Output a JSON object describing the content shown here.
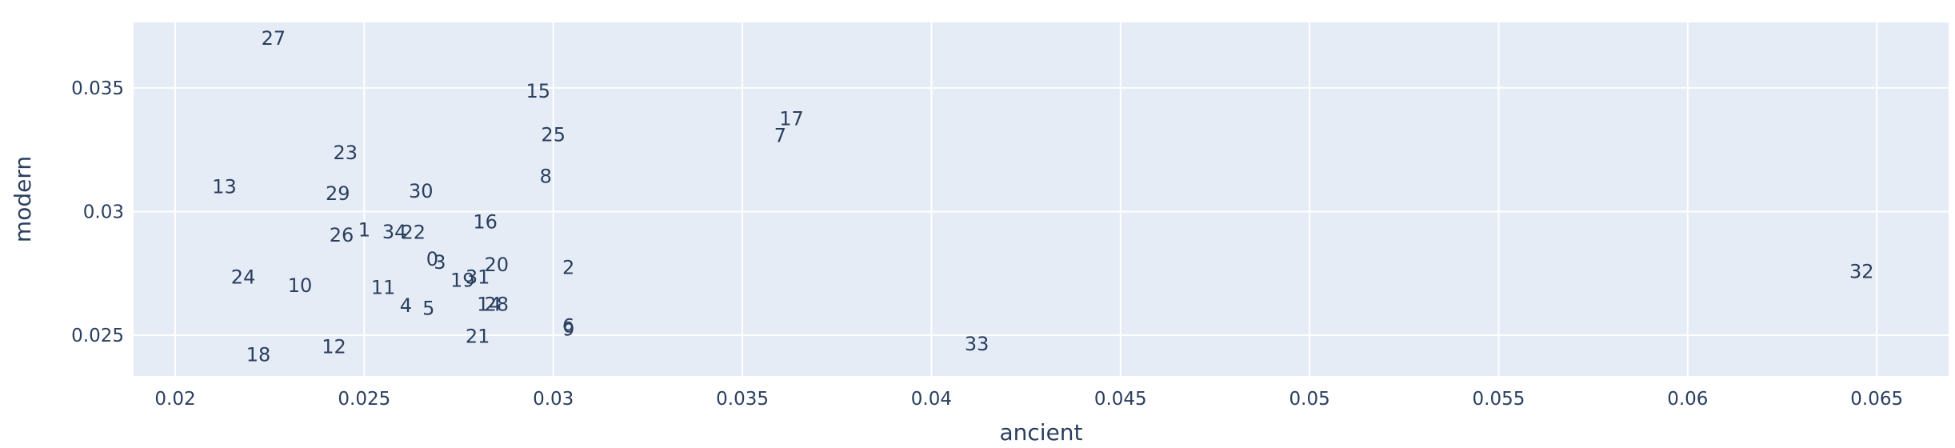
{
  "chart_data": {
    "type": "scatter",
    "mode": "text",
    "xlabel": "ancient",
    "ylabel": "modern",
    "xlim": [
      0.0189,
      0.0669
    ],
    "ylim": [
      0.02335,
      0.03765
    ],
    "x_ticks": [
      "0.02",
      "0.025",
      "0.03",
      "0.035",
      "0.04",
      "0.045",
      "0.05",
      "0.055",
      "0.06",
      "0.065"
    ],
    "y_ticks": [
      "0.025",
      "0.03",
      "0.035"
    ],
    "x_tick_values": [
      0.02,
      0.025,
      0.03,
      0.035,
      0.04,
      0.045,
      0.05,
      0.055,
      0.06,
      0.065
    ],
    "y_tick_values": [
      0.025,
      0.03,
      0.035
    ],
    "grid": true,
    "plot_bgcolor": "#E5ECF6",
    "text_color": "#2A3F5F",
    "points": [
      {
        "label": "0",
        "x": 0.0268,
        "y": 0.02808
      },
      {
        "label": "1",
        "x": 0.025,
        "y": 0.02925
      },
      {
        "label": "2",
        "x": 0.0304,
        "y": 0.02773
      },
      {
        "label": "3",
        "x": 0.027,
        "y": 0.02795
      },
      {
        "label": "4",
        "x": 0.0261,
        "y": 0.0262
      },
      {
        "label": "5",
        "x": 0.0267,
        "y": 0.02608
      },
      {
        "label": "6",
        "x": 0.0304,
        "y": 0.02537
      },
      {
        "label": "7",
        "x": 0.036,
        "y": 0.03308
      },
      {
        "label": "8",
        "x": 0.0298,
        "y": 0.03143
      },
      {
        "label": "9",
        "x": 0.0304,
        "y": 0.02525
      },
      {
        "label": "10",
        "x": 0.0233,
        "y": 0.027
      },
      {
        "label": "11",
        "x": 0.0255,
        "y": 0.02693
      },
      {
        "label": "12",
        "x": 0.0242,
        "y": 0.02453
      },
      {
        "label": "13",
        "x": 0.0213,
        "y": 0.031
      },
      {
        "label": "14",
        "x": 0.0283,
        "y": 0.02625
      },
      {
        "label": "15",
        "x": 0.0296,
        "y": 0.03487
      },
      {
        "label": "16",
        "x": 0.0282,
        "y": 0.02958
      },
      {
        "label": "17",
        "x": 0.0363,
        "y": 0.03375
      },
      {
        "label": "18",
        "x": 0.0222,
        "y": 0.0242
      },
      {
        "label": "19",
        "x": 0.0276,
        "y": 0.02722
      },
      {
        "label": "20",
        "x": 0.0285,
        "y": 0.02785
      },
      {
        "label": "21",
        "x": 0.028,
        "y": 0.02495
      },
      {
        "label": "22",
        "x": 0.0263,
        "y": 0.02915
      },
      {
        "label": "23",
        "x": 0.0245,
        "y": 0.03237
      },
      {
        "label": "24",
        "x": 0.0218,
        "y": 0.02735
      },
      {
        "label": "25",
        "x": 0.03,
        "y": 0.0331
      },
      {
        "label": "26",
        "x": 0.0244,
        "y": 0.02905
      },
      {
        "label": "27",
        "x": 0.0226,
        "y": 0.037
      },
      {
        "label": "28",
        "x": 0.0285,
        "y": 0.02625
      },
      {
        "label": "29",
        "x": 0.0243,
        "y": 0.03072
      },
      {
        "label": "30",
        "x": 0.0265,
        "y": 0.03083
      },
      {
        "label": "31",
        "x": 0.028,
        "y": 0.02735
      },
      {
        "label": "32",
        "x": 0.0646,
        "y": 0.02757
      },
      {
        "label": "33",
        "x": 0.0412,
        "y": 0.02465
      },
      {
        "label": "34",
        "x": 0.0258,
        "y": 0.02918
      }
    ]
  }
}
